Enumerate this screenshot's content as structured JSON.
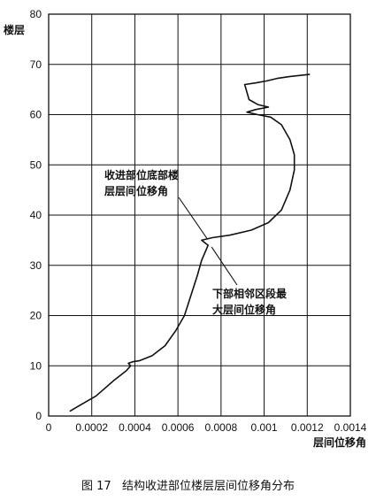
{
  "caption": "图 17   结构收进部位楼层层间位移角分布",
  "chart_data": {
    "type": "line",
    "title": "",
    "xlabel": "层间位移角",
    "ylabel": "楼层",
    "xlim": [
      0,
      0.0014
    ],
    "ylim": [
      0,
      80
    ],
    "x_ticks": [
      "0",
      "0.0002",
      "0.0004",
      "0.0006",
      "0.0008",
      "0.001",
      "0.0012",
      "0.0014"
    ],
    "y_ticks": [
      "0",
      "10",
      "20",
      "30",
      "40",
      "50",
      "60",
      "70",
      "80"
    ],
    "grid": true,
    "series": [
      {
        "x": [
          0.0001,
          0.00014,
          0.00022,
          0.0003,
          0.00036,
          0.00038,
          0.00037,
          0.00039,
          0.00042,
          0.00048,
          0.00054,
          0.00059,
          0.00063,
          0.00066,
          0.00069,
          0.00071,
          0.00073,
          0.00074,
          0.00071,
          0.00076,
          0.00084,
          0.00094,
          0.00102,
          0.00108,
          0.00112,
          0.00114,
          0.00114,
          0.00112,
          0.00108,
          0.00103,
          0.00097,
          0.00092,
          0.00096,
          0.00102,
          0.00097,
          0.00093,
          0.00091,
          0.00096,
          0.00101,
          0.00106,
          0.00112,
          0.00121
        ],
        "y": [
          1,
          2,
          4,
          7,
          9,
          10,
          10.5,
          10.8,
          11,
          12,
          14,
          17,
          20,
          24,
          28,
          31,
          33,
          34,
          35,
          35.5,
          36,
          37,
          38.5,
          41,
          45,
          49,
          52,
          55,
          58,
          59.5,
          60,
          60.5,
          61,
          61.5,
          62,
          63,
          66,
          66.3,
          66.7,
          67.2,
          67.6,
          68
        ]
      }
    ],
    "annotations": [
      {
        "lines": [
          "收进部位底部楼",
          "层层间位移角"
        ],
        "arrow_to": [
          0.00071,
          35
        ]
      },
      {
        "lines": [
          "下部相邻区段最",
          "大层间位移角"
        ],
        "arrow_to": [
          0.00074,
          34
        ]
      }
    ]
  }
}
